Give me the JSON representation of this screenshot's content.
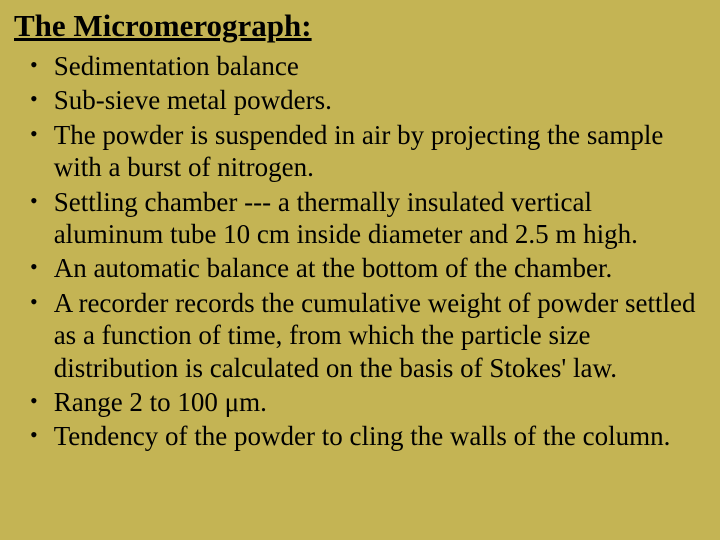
{
  "title": "The Micromerograph:",
  "bullets": [
    "Sedimentation balance",
    "Sub-sieve metal powders.",
    "The powder is suspended in air by projecting the sample with a burst of nitrogen.",
    "Settling chamber --- a thermally insulated vertical aluminum tube 10 cm inside diameter and 2.5 m high.",
    "An automatic balance at the bottom of the chamber.",
    "A recorder records the cumulative weight of powder settled as a function of time, from which the particle size distribution is calculated on the basis of Stokes' law.",
    "Range 2 to 100 μm.",
    "Tendency of the powder to cling the walls of the column."
  ],
  "colors": {
    "background": "#c4b454",
    "text": "#000000"
  },
  "typography": {
    "title_fontsize": 31,
    "body_fontsize": 27,
    "font_family": "Times New Roman"
  }
}
